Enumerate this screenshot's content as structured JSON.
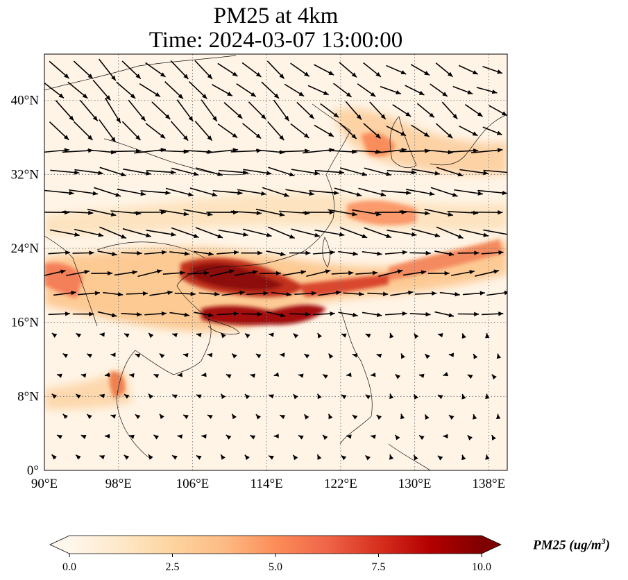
{
  "title": {
    "line1": "PM25 at 4km",
    "line2": "Time: 2024-03-07 13:00:00"
  },
  "map": {
    "projection": "PlateCarree",
    "lon_range": [
      90,
      140
    ],
    "lat_range": [
      0,
      45
    ],
    "lon_ticks": [
      {
        "value": 90,
        "label": "90°E"
      },
      {
        "value": 98,
        "label": "98°E"
      },
      {
        "value": 106,
        "label": "106°E"
      },
      {
        "value": 114,
        "label": "114°E"
      },
      {
        "value": 122,
        "label": "122°E"
      },
      {
        "value": 130,
        "label": "130°E"
      },
      {
        "value": 138,
        "label": "138°E"
      }
    ],
    "lat_ticks": [
      {
        "value": 0,
        "label": "0°"
      },
      {
        "value": 8,
        "label": "8°N"
      },
      {
        "value": 16,
        "label": "16°N"
      },
      {
        "value": 24,
        "label": "24°N"
      },
      {
        "value": 32,
        "label": "32°N"
      },
      {
        "value": 40,
        "label": "40°N"
      }
    ],
    "gridlines": "dotted",
    "variable": "PM25",
    "wind_vectors": "black arrows"
  },
  "colorbar": {
    "colormap": "OrRd",
    "colors": [
      "#fff7ec",
      "#fee8c8",
      "#fdd49e",
      "#fdbb84",
      "#fc8d59",
      "#ef6548",
      "#d7301f",
      "#b30000",
      "#7f0000"
    ],
    "range": [
      0,
      10
    ],
    "extend": "both",
    "ticks": [
      "0.0",
      "2.5",
      "5.0",
      "7.5",
      "10.0"
    ],
    "label_main": "PM25 (ug/m",
    "label_sup": "3",
    "label_end": ")"
  }
}
